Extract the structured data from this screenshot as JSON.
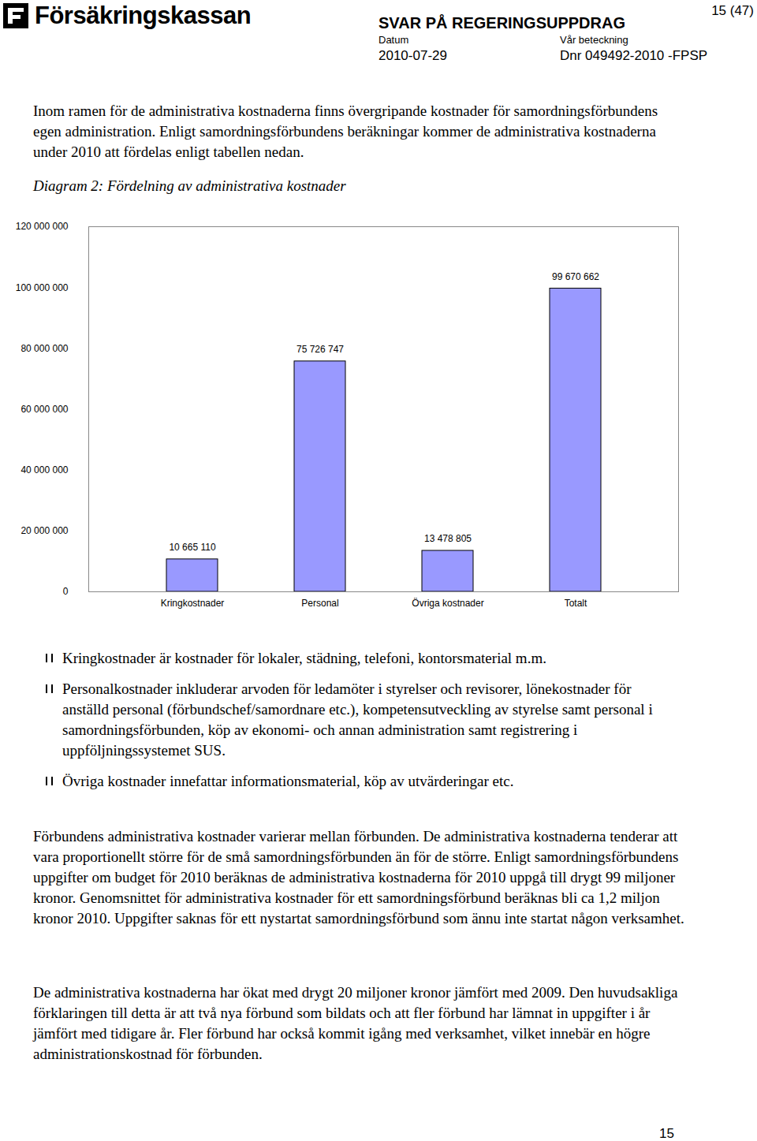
{
  "header": {
    "logo": "Försäkringskassan",
    "title": "SVAR PÅ REGERINGSUPPDRAG",
    "date_label": "Datum",
    "date": "2010-07-29",
    "ref_label": "Vår beteckning",
    "ref": "Dnr 049492-2010 -FPSP",
    "page": "15 (47)"
  },
  "intro": "Inom ramen för de administrativa kostnaderna finns övergripande kostnader för samordningsförbundens egen administration. Enligt samordningsförbundens beräkningar kommer de administrativa kostnaderna under 2010 att fördelas enligt tabellen nedan.",
  "chart_data": {
    "type": "bar",
    "title": "Diagram 2: Fördelning av administrativa kostnader",
    "categories": [
      "Kringkostnader",
      "Personal",
      "Övriga kostnader",
      "Totalt"
    ],
    "values": [
      10665110,
      75726747,
      13478805,
      99670662
    ],
    "value_labels": [
      "10 665 110",
      "75 726 747",
      "13 478 805",
      "99 670 662"
    ],
    "data_labels": true,
    "color": "#9999ff",
    "grid": false,
    "ylim": [
      0,
      120000000
    ],
    "yticks": [
      0,
      {
        "value": 20000000,
        "label": "20 000 000"
      },
      {
        "value": 40000000,
        "label": "40 000 000"
      },
      {
        "value": 60000000,
        "label": "60 000 000"
      },
      {
        "value": 80000000,
        "label": "80 000 000"
      },
      {
        "value": 100000000,
        "label": "100 000 000"
      },
      {
        "value": 120000000,
        "label": "120 000 000"
      }
    ]
  },
  "bullets": [
    "Kringkostnader är kostnader för lokaler, städning, telefoni, kontorsmaterial m.m.",
    "Personalkostnader inkluderar arvoden för ledamöter i styrelser och revisorer, lönekostnader för anställd personal (förbundschef/samordnare etc.), kompetensutveckling av styrelse samt personal i samordningsförbunden, köp av ekonomi- och annan administration samt registrering i uppföljningssystemet SUS.",
    "Övriga kostnader innefattar informationsmaterial, köp av utvärderingar etc."
  ],
  "paragraphs": [
    "Förbundens administrativa kostnader varierar mellan förbunden. De administrativa kostnaderna tenderar att vara proportionellt större för de små samordningsförbunden än för de större. Enligt samordningsförbundens uppgifter om budget för 2010 beräknas de administrativa kostnaderna för 2010 uppgå till drygt 99 miljoner kronor. Genomsnittet för administrativa kostnader för ett samordningsförbund beräknas bli ca 1,2 miljon kronor 2010. Uppgifter saknas för ett nystartat samordningsförbund som ännu inte startat någon verksamhet.",
    "De administrativa kostnaderna har ökat med drygt 20 miljoner kronor jämfört med 2009. Den huvudsakliga förklaringen till detta är att två nya förbund som bildats och att fler förbund har lämnat in uppgifter i år jämfört med tidigare år. Fler förbund har också kommit igång med verksamhet, vilket innebär en högre administrationskostnad för förbunden."
  ],
  "footer_page": "15"
}
